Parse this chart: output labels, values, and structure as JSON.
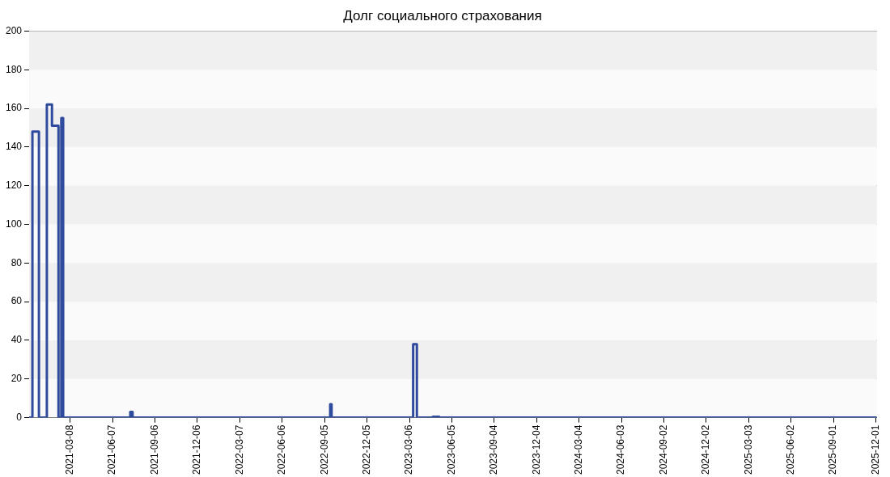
{
  "chart_data": {
    "type": "step",
    "title": "Долг социального страхования",
    "x": [
      "2020-12-10",
      "2020-12-17",
      "2020-12-31",
      "2021-01-17",
      "2021-01-28",
      "2021-02-11",
      "2021-02-17",
      "2021-02-21",
      "2021-07-15",
      "2021-07-20",
      "2022-09-17",
      "2022-09-20",
      "2023-03-14",
      "2023-03-22",
      "2023-04-25",
      "2023-05-09",
      "2025-12-03"
    ],
    "series": [
      {
        "color": "#2f4b9e",
        "values": [
          0,
          148,
          0,
          162,
          151,
          0,
          155,
          0,
          3,
          0,
          7,
          0,
          38,
          0,
          0.5,
          0,
          0
        ]
      }
    ],
    "xlim": [
      "2020-12-10",
      "2025-12-03"
    ],
    "xticks": [
      "2021-03-08",
      "2021-06-07",
      "2021-09-06",
      "2021-12-06",
      "2022-03-07",
      "2022-06-06",
      "2022-09-05",
      "2022-12-05",
      "2023-03-06",
      "2023-06-05",
      "2023-09-04",
      "2023-12-04",
      "2024-03-04",
      "2024-06-03",
      "2024-09-02",
      "2024-12-02",
      "2025-03-03",
      "2025-06-02",
      "2025-09-01",
      "2025-12-01"
    ],
    "ylim": [
      0,
      200
    ],
    "yticks": [
      0,
      20,
      40,
      60,
      80,
      100,
      120,
      140,
      160,
      180,
      200
    ],
    "grid": "y",
    "legend": false,
    "marker": "none",
    "line_style": "solid"
  }
}
